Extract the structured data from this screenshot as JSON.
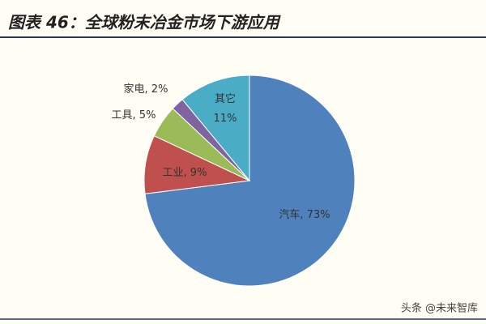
{
  "chart_data": {
    "type": "pie",
    "title": "图表 46：全球粉末冶金市场下游应用",
    "categories": [
      "汽车",
      "工业",
      "工具",
      "家电",
      "其它"
    ],
    "values": [
      73,
      9,
      5,
      2,
      11
    ],
    "value_labels": [
      "汽车, 73%",
      "工业, 9%",
      "工具, 5%",
      "家电, 2%",
      "其它\n11%"
    ],
    "colors": [
      "#4f81bd",
      "#c0504d",
      "#9bbb59",
      "#8064a2",
      "#4bacc6"
    ]
  },
  "watermark": "头条 @未来智库"
}
